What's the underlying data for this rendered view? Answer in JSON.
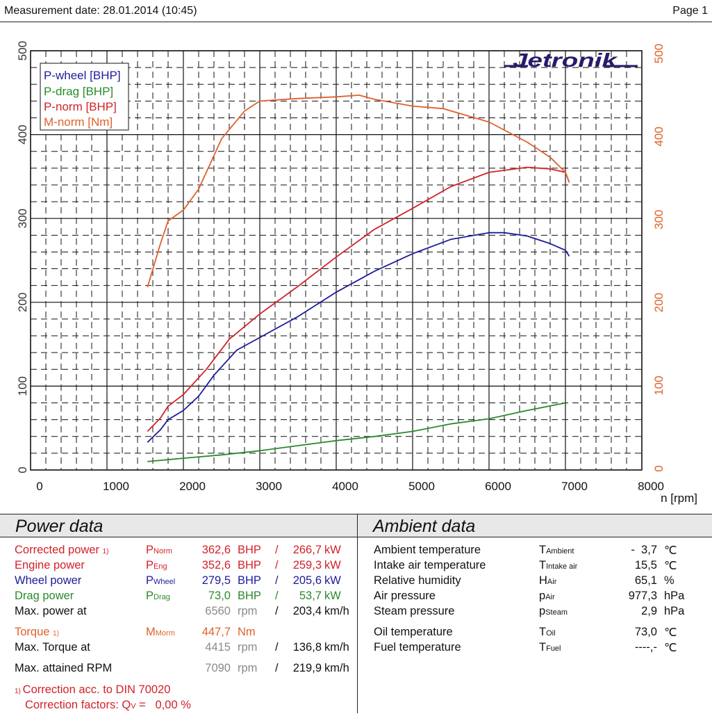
{
  "header": {
    "measurement_date": "Measurement date: 28.01.2014 (10:45)",
    "page": "Page 1"
  },
  "colors": {
    "p_wheel": "#1c1c9c",
    "p_drag": "#2a8a2a",
    "p_norm": "#d2222a",
    "m_norm": "#e0602a",
    "logo": "#2a1a6a",
    "grid": "#111111"
  },
  "logo": {
    "text": "Jetronik"
  },
  "chart_data": {
    "type": "line",
    "title": "",
    "xlabel": "n [rpm]",
    "ylabel_left": "",
    "ylabel_right": "",
    "xlim": [
      0,
      8000
    ],
    "ylim": [
      0,
      500
    ],
    "ylim_right": [
      0,
      500
    ],
    "x_ticks": [
      0,
      1000,
      2000,
      3000,
      4000,
      5000,
      6000,
      7000,
      8000
    ],
    "y_ticks_left": [
      0,
      100,
      200,
      300,
      400,
      500
    ],
    "y_ticks_right": [
      0,
      100,
      200,
      300,
      400,
      500
    ],
    "grid": true,
    "legend_position": "upper-left",
    "legend": [
      "P-wheel [BHP]",
      "P-drag [BHP]",
      "P-norm [BHP]",
      "M-norm [Nm]"
    ],
    "series": [
      {
        "name": "P-wheel [BHP]",
        "color": "#1c1c9c",
        "x": [
          1530,
          1700,
          1800,
          2000,
          2200,
          2400,
          2700,
          3000,
          3500,
          4000,
          4500,
          5000,
          5500,
          6000,
          6200,
          6500,
          6800,
          7000,
          7050
        ],
        "y": [
          33,
          48,
          60,
          71,
          88,
          113,
          143,
          158,
          183,
          212,
          237,
          258,
          275,
          283,
          283,
          279,
          270,
          262,
          255
        ]
      },
      {
        "name": "P-drag [BHP]",
        "color": "#2a8a2a",
        "x": [
          1530,
          2000,
          2500,
          3000,
          3500,
          4000,
          4500,
          5000,
          5500,
          6000,
          6500,
          7000
        ],
        "y": [
          10,
          14,
          18,
          23,
          29,
          35,
          40,
          46,
          55,
          61,
          71,
          80
        ]
      },
      {
        "name": "P-norm [BHP]",
        "color": "#d2222a",
        "x": [
          1530,
          1700,
          1800,
          2000,
          2300,
          2600,
          3000,
          3500,
          4000,
          4500,
          5000,
          5500,
          6000,
          6500,
          6800,
          7000,
          7050
        ],
        "y": [
          46,
          62,
          76,
          90,
          120,
          156,
          186,
          219,
          254,
          287,
          312,
          338,
          355,
          361,
          359,
          355,
          343
        ]
      },
      {
        "name": "M-norm [Nm]",
        "color": "#e0602a",
        "axis": "right",
        "x": [
          1530,
          1700,
          1800,
          2000,
          2200,
          2500,
          2800,
          3000,
          3500,
          4000,
          4300,
          4500,
          5000,
          5400,
          6000,
          6500,
          6800,
          7000,
          7050
        ],
        "y": [
          218,
          270,
          297,
          310,
          335,
          395,
          428,
          440,
          443,
          445,
          447,
          442,
          434,
          431,
          415,
          391,
          373,
          355,
          343
        ]
      }
    ]
  },
  "power_data": {
    "title": "Power data",
    "rows": [
      {
        "label": "Corrected power",
        "footnote": "1)",
        "sym": "P",
        "sub": "Norm",
        "v1": "362,6",
        "u1": "BHP",
        "sep": "/",
        "v2": "266,7",
        "u2": "kW",
        "color": "red"
      },
      {
        "label": "Engine power",
        "footnote": "",
        "sym": "P",
        "sub": "Eng",
        "v1": "352,6",
        "u1": "BHP",
        "sep": "/",
        "v2": "259,3",
        "u2": "kW",
        "color": "red"
      },
      {
        "label": "Wheel power",
        "footnote": "",
        "sym": "P",
        "sub": "Wheel",
        "v1": "279,5",
        "u1": "BHP",
        "sep": "/",
        "v2": "205,6",
        "u2": "kW",
        "color": "blue"
      },
      {
        "label": "Drag power",
        "footnote": "",
        "sym": "P",
        "sub": "Drag",
        "v1": "73,0",
        "u1": "BHP",
        "sep": "/",
        "v2": "53,7",
        "u2": "kW",
        "color": "green"
      },
      {
        "label": "Max. power at",
        "footnote": "",
        "sym": "",
        "sub": "",
        "v1": "6560",
        "u1": "rpm",
        "sep": "/",
        "v2": "203,4",
        "u2": "km/h",
        "color": "mixed"
      }
    ],
    "torque": {
      "label": "Torque",
      "footnote": "1)",
      "sym": "M",
      "sub": "Morm",
      "v1": "447,7",
      "u1": "Nm"
    },
    "max_torque": {
      "label": "Max. Torque at",
      "v1": "4415",
      "u1": "rpm",
      "sep": "/",
      "v2": "136,8",
      "u2": "km/h"
    },
    "max_rpm": {
      "label": "Max. attained RPM",
      "v1": "7090",
      "u1": "rpm",
      "sep": "/",
      "v2": "219,9",
      "u2": "km/h"
    },
    "footnote": {
      "mark": "1)",
      "line1": "Correction acc. to DIN 70020",
      "line2_prefix": "Correction factors: Q",
      "line2_sub": "V",
      "line2_suffix": " =   0,00 %"
    }
  },
  "ambient_data": {
    "title": "Ambient data",
    "rows": [
      {
        "label": "Ambient temperature",
        "sym": "T",
        "sub": "Ambient",
        "value": "-  3,7",
        "unit": "℃"
      },
      {
        "label": "Intake air temperature",
        "sym": "T",
        "sub": "Intake air",
        "value": "15,5",
        "unit": "℃"
      },
      {
        "label": "Relative humidity",
        "sym": "H",
        "sub": "Air",
        "value": "65,1",
        "unit": "%"
      },
      {
        "label": "Air pressure",
        "sym": "p",
        "sub": "Air",
        "value": "977,3",
        "unit": "hPa"
      },
      {
        "label": "Steam pressure",
        "sym": "p",
        "sub": "Steam",
        "value": "2,9",
        "unit": "hPa"
      },
      {
        "label": "Oil temperature",
        "sym": "T",
        "sub": "Oil",
        "value": "73,0",
        "unit": "℃"
      },
      {
        "label": "Fuel temperature",
        "sym": "T",
        "sub": "Fuel",
        "value": "----,-",
        "unit": "℃"
      }
    ]
  }
}
